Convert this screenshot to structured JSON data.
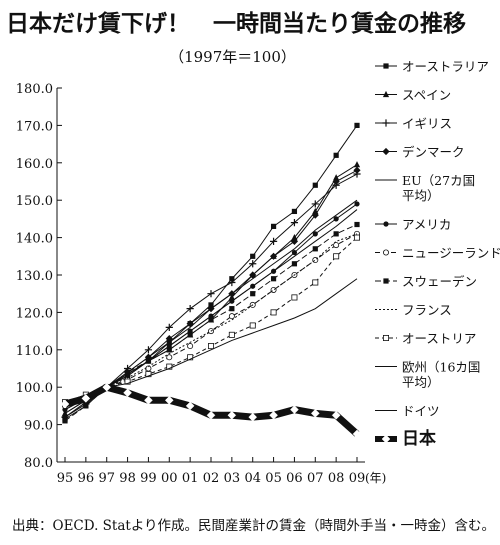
{
  "title": "日本だけ賃下げ！　一時間当たり賃金の推移",
  "subtitle": "（1997年＝100）",
  "source": "出典：OECD. Statより作成。民間産業計の賃金（時間外手当・一時金）含む。",
  "chart_data": {
    "type": "line",
    "title": "日本だけ賃下げ！　一時間当たり賃金の推移",
    "subtitle": "（1997年＝100）",
    "x": [
      "95",
      "96",
      "97",
      "98",
      "99",
      "00",
      "01",
      "02",
      "03",
      "04",
      "05",
      "06",
      "07",
      "08",
      "09"
    ],
    "x_unit": "(年)",
    "ylim": [
      80,
      180
    ],
    "yticks": [
      "80.0",
      "90.0",
      "100.0",
      "110.0",
      "120.0",
      "130.0",
      "140.0",
      "150.0",
      "160.0",
      "170.0",
      "180.0"
    ],
    "grid": false,
    "legend_position": "right",
    "series": [
      {
        "name": "オーストラリア",
        "marker": "square",
        "values": [
          91.5,
          95,
          100,
          103,
          107,
          112,
          117,
          122,
          129,
          135,
          143,
          147,
          154,
          162,
          170
        ]
      },
      {
        "name": "スペイン",
        "marker": "triangle",
        "values": [
          93,
          96.5,
          100,
          103,
          107,
          110,
          114,
          118,
          124,
          130,
          135,
          140,
          147,
          156,
          159.5
        ]
      },
      {
        "name": "イギリス",
        "marker": "plus",
        "values": [
          92,
          95.5,
          100,
          105,
          110,
          116,
          121,
          125,
          128,
          133,
          139,
          144,
          149,
          154,
          157
        ]
      },
      {
        "name": "デンマーク",
        "marker": "diamond",
        "values": [
          92,
          96,
          100,
          104,
          108,
          113,
          117,
          121,
          125,
          130,
          135,
          139,
          146,
          155,
          158
        ]
      },
      {
        "name": "EU（27カ国\n平均）",
        "marker": "none",
        "values": [
          94,
          97,
          100,
          104,
          108,
          112,
          116,
          121,
          125,
          129,
          133,
          137,
          142,
          146,
          150
        ]
      },
      {
        "name": "アメリカ",
        "marker": "circle",
        "values": [
          94,
          97,
          100,
          103.5,
          107,
          111,
          115,
          119,
          123,
          127,
          131,
          136,
          141,
          145,
          149
        ]
      },
      {
        "name": "ニュージーランド",
        "marker": "open-circle",
        "values": [
          95,
          97,
          100,
          102,
          105,
          108,
          111,
          115,
          119,
          122,
          126,
          130,
          134,
          138,
          141
        ]
      },
      {
        "name": "スウェーデン",
        "marker": "square",
        "values": [
          91,
          95,
          100,
          104,
          107,
          110,
          114,
          118,
          121,
          125,
          129,
          133,
          137,
          141,
          143.5
        ]
      },
      {
        "name": "フランス",
        "marker": "none",
        "values": [
          95,
          97.5,
          100,
          102.5,
          105.5,
          109,
          112,
          115,
          118,
          122,
          126,
          130,
          134,
          139,
          141
        ]
      },
      {
        "name": "オーストリア",
        "marker": "open-square",
        "values": [
          96,
          98,
          100,
          101.5,
          103.5,
          105.5,
          108,
          111,
          114,
          116.5,
          120,
          124,
          128,
          135,
          140
        ]
      },
      {
        "name": "欧州（16カ国\n平均）",
        "marker": "none",
        "values": [
          93,
          96.5,
          100,
          103.5,
          107,
          111,
          115,
          119,
          123,
          127,
          131,
          135,
          139,
          143,
          147.5
        ]
      },
      {
        "name": "ドイツ",
        "marker": "none",
        "values": [
          96,
          98,
          100,
          101,
          103,
          105,
          107.5,
          110,
          112.5,
          114.5,
          116.5,
          118.5,
          121,
          125,
          129
        ]
      },
      {
        "name": "日本",
        "marker": "diamond-white",
        "bold": true,
        "values": [
          95.5,
          97,
          100,
          98.5,
          96.5,
          96.5,
          95,
          92.5,
          92.5,
          92,
          92.5,
          94,
          93,
          92.5,
          87.5
        ]
      }
    ]
  }
}
